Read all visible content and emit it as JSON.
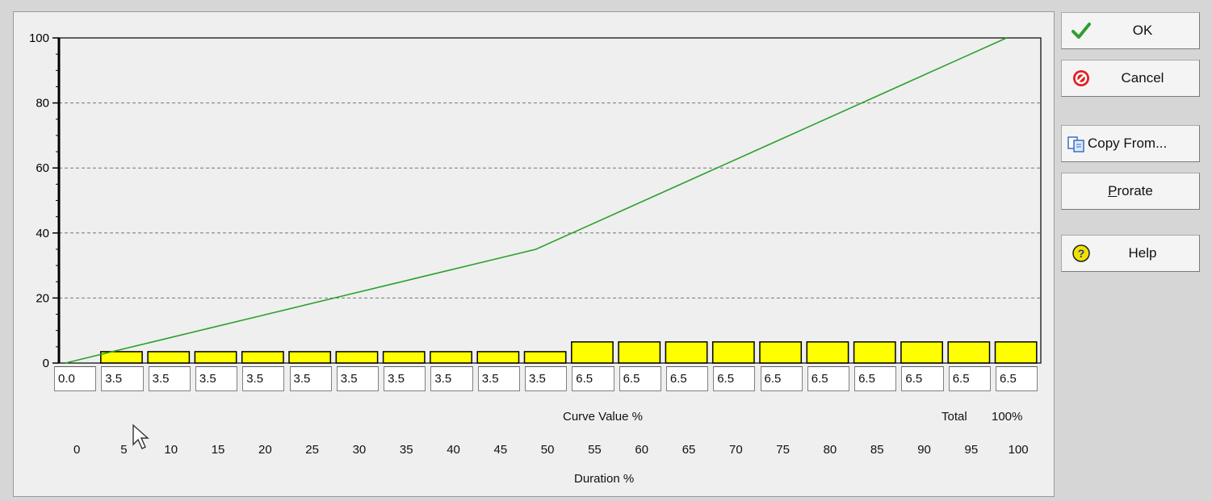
{
  "buttons": {
    "ok": "OK",
    "cancel": "Cancel",
    "copy_from": "Copy From...",
    "prorate": "Prorate",
    "help": "Help"
  },
  "labels": {
    "curve_value": "Curve Value %",
    "total": "Total",
    "total_value": "100%",
    "duration": "Duration %"
  },
  "inputs": [
    "0.0",
    "3.5",
    "3.5",
    "3.5",
    "3.5",
    "3.5",
    "3.5",
    "3.5",
    "3.5",
    "3.5",
    "3.5",
    "6.5",
    "6.5",
    "6.5",
    "6.5",
    "6.5",
    "6.5",
    "6.5",
    "6.5",
    "6.5",
    "6.5"
  ],
  "colors": {
    "bar": "#ffff00",
    "line": "#2ca02c",
    "ok_check": "#2e9e2e",
    "cancel": "#e02020",
    "help": "#f2e000"
  },
  "chart_data": {
    "type": "bar",
    "y_ticks": [
      "0",
      "20",
      "40",
      "60",
      "80",
      "100"
    ],
    "ylim": [
      0,
      100
    ],
    "x_ticks": [
      "0",
      "5",
      "10",
      "15",
      "20",
      "25",
      "30",
      "35",
      "40",
      "45",
      "50",
      "55",
      "60",
      "65",
      "70",
      "75",
      "80",
      "85",
      "90",
      "95",
      "100"
    ],
    "xlim": [
      0,
      100
    ],
    "grid": "horizontal dashed",
    "series": [
      {
        "kind": "bar",
        "x": [
          5,
          10,
          15,
          20,
          25,
          30,
          35,
          40,
          45,
          50,
          55,
          60,
          65,
          70,
          75,
          80,
          85,
          90,
          95,
          100
        ],
        "values": [
          3.5,
          3.5,
          3.5,
          3.5,
          3.5,
          3.5,
          3.5,
          3.5,
          3.5,
          3.5,
          6.5,
          6.5,
          6.5,
          6.5,
          6.5,
          6.5,
          6.5,
          6.5,
          6.5,
          6.5
        ]
      },
      {
        "kind": "line",
        "x": [
          0,
          5,
          10,
          15,
          20,
          25,
          30,
          35,
          40,
          45,
          50,
          55,
          60,
          65,
          70,
          75,
          80,
          85,
          90,
          95,
          100
        ],
        "values": [
          0,
          3.5,
          7,
          10.5,
          14,
          17.5,
          21,
          24.5,
          28,
          31.5,
          35,
          41.5,
          48,
          54.5,
          61,
          67.5,
          74,
          80.5,
          87,
          93.5,
          100
        ]
      }
    ]
  }
}
